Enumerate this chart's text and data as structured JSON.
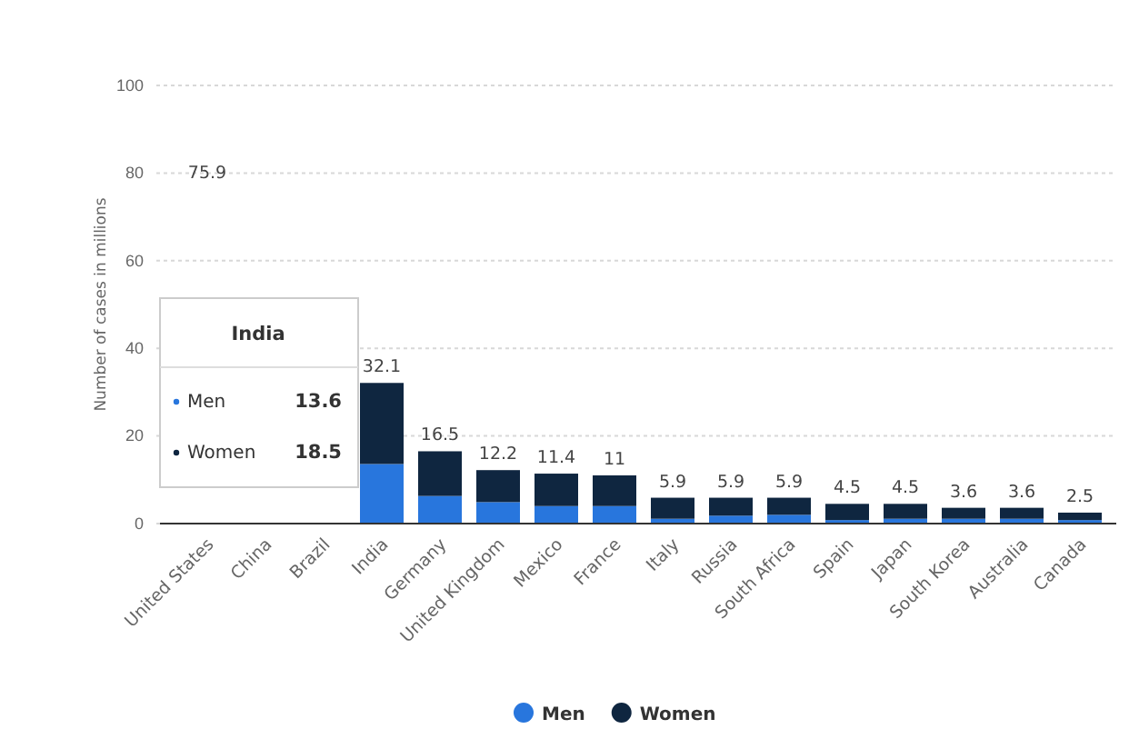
{
  "chart_data": {
    "type": "bar",
    "stacked": true,
    "ylabel": "Number of cases in millions",
    "categories": [
      "United States",
      "China",
      "Brazil",
      "India",
      "Germany",
      "United Kingdom",
      "Mexico",
      "France",
      "Italy",
      "Russia",
      "South Africa",
      "Spain",
      "Japan",
      "South Korea",
      "Australia",
      "Canada"
    ],
    "series": [
      {
        "name": "Men",
        "color": "#2876dd",
        "values": [
          null,
          null,
          null,
          13.6,
          6.3,
          4.9,
          4.0,
          4.0,
          1.1,
          1.8,
          2.0,
          0.8,
          1.1,
          1.1,
          1.1,
          0.8
        ]
      },
      {
        "name": "Women",
        "color": "#0f2640",
        "values": [
          null,
          null,
          null,
          18.5,
          10.2,
          7.3,
          7.4,
          7.0,
          4.8,
          4.1,
          3.9,
          3.7,
          3.4,
          2.5,
          2.5,
          1.7
        ]
      }
    ],
    "totals": [
      null,
      null,
      null,
      "32.1",
      "16.5",
      "12.2",
      "11.4",
      "11",
      "5.9",
      "5.9",
      "5.9",
      "4.5",
      "4.5",
      "3.6",
      "3.6",
      "2.5"
    ],
    "ylim": [
      0,
      100
    ],
    "yticks": [
      0,
      20,
      40,
      60,
      80,
      100
    ],
    "grid": "y",
    "legend": "bottom",
    "annotations": [
      "India",
      "Men",
      "13.6",
      "Women",
      "18.5",
      "75.9"
    ]
  }
}
